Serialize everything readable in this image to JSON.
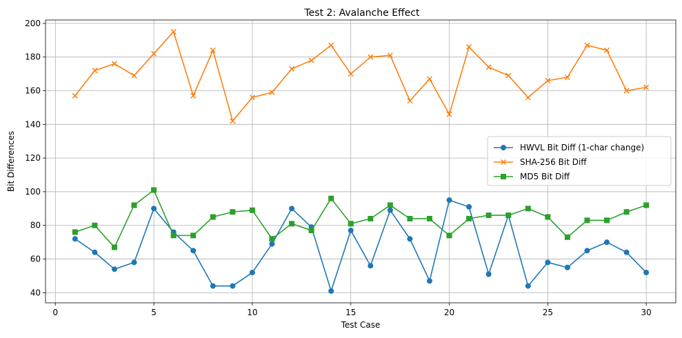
{
  "chart_data": {
    "type": "line",
    "title": "Test 2: Avalanche Effect",
    "xlabel": "Test Case",
    "ylabel": "Bit Differences",
    "xlim": [
      -0.5,
      31.5
    ],
    "ylim": [
      34,
      202
    ],
    "xticks": [
      0,
      5,
      10,
      15,
      20,
      25,
      30
    ],
    "yticks": [
      40,
      60,
      80,
      100,
      120,
      140,
      160,
      180,
      200
    ],
    "grid": true,
    "legend_position": "center-right",
    "x": [
      1,
      2,
      3,
      4,
      5,
      6,
      7,
      8,
      9,
      10,
      11,
      12,
      13,
      14,
      15,
      16,
      17,
      18,
      19,
      20,
      21,
      22,
      23,
      24,
      25,
      26,
      27,
      28,
      29,
      30
    ],
    "series": [
      {
        "name": "HWVL Bit Diff (1-char change)",
        "color": "#1f77b4",
        "marker": "circle",
        "values": [
          72,
          64,
          54,
          58,
          90,
          76,
          65,
          44,
          44,
          52,
          69,
          90,
          79,
          41,
          77,
          56,
          89,
          72,
          47,
          95,
          91,
          51,
          86,
          44,
          58,
          55,
          65,
          70,
          64,
          52
        ]
      },
      {
        "name": "SHA-256 Bit Diff",
        "color": "#ff7f0e",
        "marker": "x",
        "values": [
          157,
          172,
          176,
          169,
          182,
          195,
          157,
          184,
          142,
          156,
          159,
          173,
          178,
          187,
          170,
          180,
          181,
          154,
          167,
          146,
          186,
          174,
          169,
          156,
          166,
          168,
          187,
          184,
          160,
          162
        ]
      },
      {
        "name": "MD5 Bit Diff",
        "color": "#2ca02c",
        "marker": "square",
        "values": [
          76,
          80,
          67,
          92,
          101,
          74,
          74,
          85,
          88,
          89,
          72,
          81,
          77,
          96,
          81,
          84,
          92,
          84,
          84,
          74,
          84,
          86,
          86,
          90,
          85,
          73,
          83,
          83,
          88,
          92
        ]
      }
    ]
  }
}
